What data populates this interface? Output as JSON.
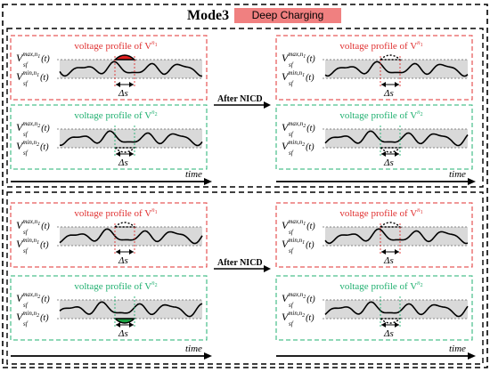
{
  "title": "Mode3",
  "mode_badge": "Deep Charging",
  "arrow_label": "After NICD",
  "time_label": "time",
  "delta_label": "Δs",
  "profile1_title": "voltage profile of  V",
  "profile1_sup": "n",
  "profile1_sub": "1",
  "profile2_title": "voltage profile of  V",
  "profile2_sup": "n",
  "profile2_sub": "2",
  "vmax1": {
    "base": "V",
    "sup": "max,n",
    "sup_sub": "1",
    "sub": "sf",
    "arg": "(t)"
  },
  "vmin1": {
    "base": "V",
    "sup": "min,n",
    "sup_sub": "1",
    "sub": "sf",
    "arg": "(t)"
  },
  "vmax2": {
    "base": "V",
    "sup": "max,n",
    "sup_sub": "2",
    "sub": "sf",
    "arg": "(t)"
  },
  "vmin2": {
    "base": "V",
    "sup": "min,n",
    "sup_sub": "2",
    "sub": "sf",
    "arg": "(t)"
  },
  "colors": {
    "red": "#e03030",
    "green": "#20b070",
    "band": "#d9d9d9",
    "badge": "#f08080",
    "fill_red": "#e02020",
    "fill_green": "#18a040"
  }
}
